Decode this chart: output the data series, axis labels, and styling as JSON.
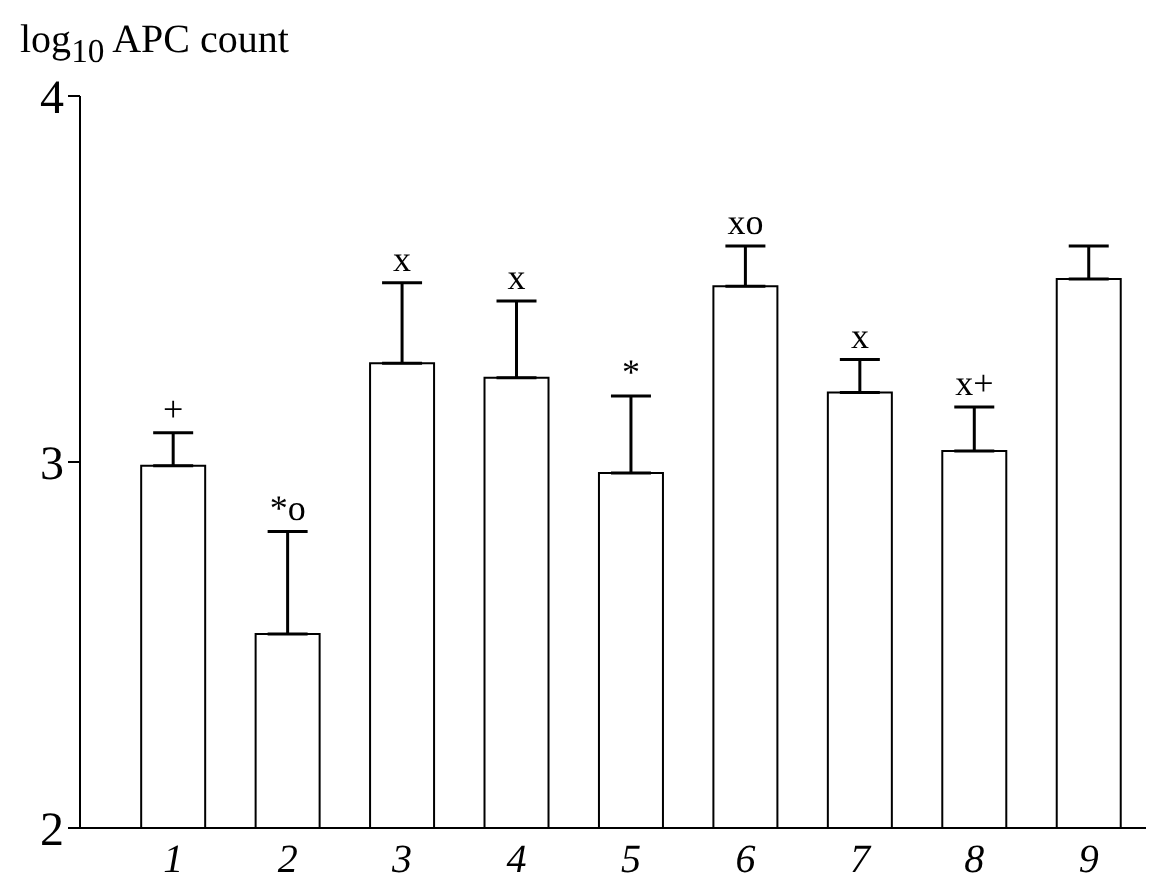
{
  "chart_data": {
    "type": "bar",
    "ylabel": "log$_{10}$ APC count",
    "categories": [
      "1",
      "2",
      "3",
      "4",
      "5",
      "6",
      "7",
      "8",
      "9"
    ],
    "values": [
      2.99,
      2.53,
      3.27,
      3.23,
      2.97,
      3.48,
      3.19,
      3.03,
      3.5
    ],
    "errors": [
      [
        2.99,
        3.08
      ],
      [
        2.53,
        2.81
      ],
      [
        3.27,
        3.49
      ],
      [
        3.23,
        3.44
      ],
      [
        2.97,
        3.18
      ],
      [
        3.48,
        3.59
      ],
      [
        3.19,
        3.28
      ],
      [
        3.03,
        3.15
      ],
      [
        3.5,
        3.59
      ]
    ],
    "color": "#ffffff",
    "ylim": [
      2,
      4
    ],
    "yticks": [
      2,
      3,
      4
    ],
    "grid": false,
    "annotations": [
      {
        "text": "+",
        "x": "1",
        "y": 3.08
      },
      {
        "text": "*o",
        "x": "2",
        "y": 2.81
      },
      {
        "text": "x",
        "x": "3",
        "y": 3.49
      },
      {
        "text": "x",
        "x": "4",
        "y": 3.44
      },
      {
        "text": "*",
        "x": "5",
        "y": 3.18
      },
      {
        "text": "xo",
        "x": "6",
        "y": 3.59
      },
      {
        "text": "x",
        "x": "7",
        "y": 3.28
      },
      {
        "text": "x+",
        "x": "8",
        "y": 3.15
      }
    ]
  }
}
